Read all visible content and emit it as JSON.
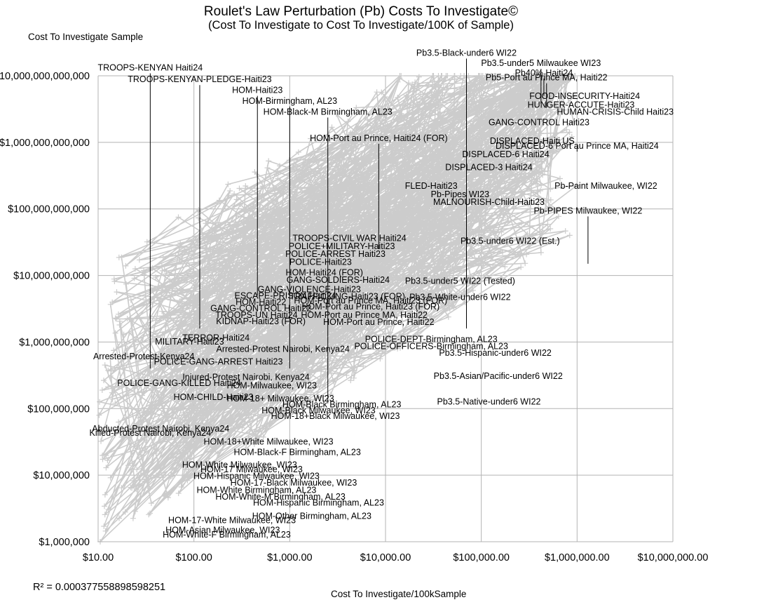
{
  "chart_data": {
    "type": "scatter",
    "title": "Roulet's Law Perturbation (Pb) Costs To Investigate©",
    "subtitle": "(Cost To Investigate to Cost To Investigate/100K of Sample)",
    "xlabel": "Cost To Investigate/100kSample",
    "ylabel": "Cost To Investigate Sample",
    "x_scale": "log",
    "y_scale": "log",
    "xlim": [
      10,
      10000000
    ],
    "ylim": [
      1000000,
      10000000000000
    ],
    "x_tick_values": [
      10,
      100,
      1000,
      10000,
      100000,
      1000000,
      10000000
    ],
    "x_tick_labels": [
      "$10.00",
      "$100.00",
      "$1,000.00",
      "$10,000.00",
      "$100,000.00",
      "$1,000,000.00",
      "$10,000,000.00"
    ],
    "y_tick_values": [
      1000000,
      10000000,
      100000000,
      1000000000,
      10000000000,
      100000000000,
      1000000000000,
      10000000000000
    ],
    "y_tick_labels": [
      "$1,000,000",
      "$10,000,000",
      "$100,000,000",
      "$1,000,000,000",
      "$10,000,000,000",
      "$100,000,000,000",
      "$1,000,000,000,000",
      "$10,000,000,000,000"
    ],
    "grid": true,
    "series_color": "#cccccc",
    "r_squared": "R² = 0.000377558898598251",
    "annotations": [
      {
        "text": "TROOPS-KENYAN Haiti24",
        "x": 35,
        "y": 12000000000000.0,
        "line_to_y": 400000000
      },
      {
        "text": "TROOPS-KENYAN-PLEDGE-Haiti23",
        "x": 115,
        "y": 8000000000000.0,
        "line_to_y": 1600000000
      },
      {
        "text": "HOM-Haiti23",
        "x": 460,
        "y": 5500000000000.0,
        "line_to_y": 5000000000
      },
      {
        "text": "HOM-Birmingham, AL23",
        "x": 1000,
        "y": 3800000000000.0,
        "line_to_y": 400000000
      },
      {
        "text": "HOM-Black-M Birmingham, AL23",
        "x": 2500,
        "y": 2600000000000.0,
        "line_to_y": 120000000
      },
      {
        "text": "HOM-Port au Prince, Haiti24 (FOR)",
        "x": 8500,
        "y": 1050000000000.0,
        "line_to_y": 25000000000
      },
      {
        "text": "Pb3.5-Black-under6 WI22",
        "x": 70000,
        "y": 20000000000000.0,
        "line_to_y": 1600000000
      },
      {
        "text": "Pb3.5-under5 Milwaukee WI23",
        "x": 420000,
        "y": 14000000000000.0,
        "line_to_y": 3800000000000.0
      },
      {
        "text": "Pb40% Haiti24",
        "x": 450000,
        "y": 10000000000000.0,
        "line_to_y": 5000000000000.0
      },
      {
        "text": "Pb5-Port au Prince MA, Haiti22",
        "x": 480000,
        "y": 8500000000000.0,
        "line_to_y": 3300000000000.0
      },
      {
        "text": "FOOD-INSECURITY-Haiti24",
        "x": 1200000,
        "y": 4500000000000.0
      },
      {
        "text": "HUNGER-ACCUTE-Haiti23",
        "x": 1100000,
        "y": 3300000000000.0
      },
      {
        "text": "HUMAN-CRISIS-Child Haiti23",
        "x": 2500000,
        "y": 2600000000000.0
      },
      {
        "text": "GANG-CONTROL Haiti23",
        "x": 400000,
        "y": 1800000000000.0
      },
      {
        "text": "DISPLACED-Haiti US",
        "x": 340000,
        "y": 950000000000.0
      },
      {
        "text": "DISPLACED-6 Port au Prince MA, Haiti24",
        "x": 1000000,
        "y": 800000000000.0,
        "line_to_y": 900000000000.0
      },
      {
        "text": "DISPLACED-6 Haiti24",
        "x": 180000,
        "y": 600000000000.0
      },
      {
        "text": "DISPLACED-3 Haiti24",
        "x": 120000,
        "y": 380000000000.0
      },
      {
        "text": "FLED-Haiti23",
        "x": 30000,
        "y": 200000000000.0
      },
      {
        "text": "Pb-Paint Milwaukee, WI22",
        "x": 2000000,
        "y": 200000000000.0
      },
      {
        "text": "Pb-Pipes WI23",
        "x": 60000,
        "y": 150000000000.0
      },
      {
        "text": "MALNOURISH-Child-Haiti23",
        "x": 120000,
        "y": 115000000000.0
      },
      {
        "text": "Pb-PIPES Milwaukee, WI22",
        "x": 1300000,
        "y": 85000000000.0,
        "line_to_y": 15000000000.0
      },
      {
        "text": "TROOPS-CIVIL WAR Haiti24",
        "x": 4200,
        "y": 33000000000.0
      },
      {
        "text": "POLICE+MILITARY-Haiti23",
        "x": 3500,
        "y": 25000000000.0
      },
      {
        "text": "POLICE-ARREST Haiti23",
        "x": 3000,
        "y": 19000000000.0
      },
      {
        "text": "POLICE-Haiti23",
        "x": 2100,
        "y": 14500000000.0
      },
      {
        "text": "HOM-Haiti24 (FOR)",
        "x": 2300,
        "y": 10000000000.0
      },
      {
        "text": "GANG-SOLDIERS-Haiti24",
        "x": 3200,
        "y": 7800000000.0
      },
      {
        "text": "Pb3.5-under6 WI22 (Est.)",
        "x": 200000,
        "y": 30000000000.0
      },
      {
        "text": "Pb3.5-under5 WI22 (Tested)",
        "x": 60000,
        "y": 7500000000.0
      },
      {
        "text": "GANG-VIOLENCE-Haiti23",
        "x": 1600,
        "y": 5600000000.0
      },
      {
        "text": "ESCAPE-PRISON Haiti24",
        "x": 900,
        "y": 4500000000.0
      },
      {
        "text": "TRAFFICKING-Haiti23 (FOR)",
        "x": 4000,
        "y": 4400000000.0
      },
      {
        "text": "Pb3.5-White-under6 WI22",
        "x": 60000,
        "y": 4300000000.0
      },
      {
        "text": "HOM-Port au Prince MA, Haiti23 (FOR)",
        "x": 7000,
        "y": 3800000000.0
      },
      {
        "text": "HOM-Haiti22",
        "x": 500,
        "y": 3600000000.0
      },
      {
        "text": "HOM-Port au Prince, Haiti23 (FOR)",
        "x": 7000,
        "y": 3100000000.0
      },
      {
        "text": "GANG-CONTROL Haiti22",
        "x": 500,
        "y": 2900000000.0
      },
      {
        "text": "HOM-Port au Prince MA, Haiti22",
        "x": 6000,
        "y": 2300000000.0
      },
      {
        "text": "TROOPS-UN Haiti24",
        "x": 450,
        "y": 2300000000.0
      },
      {
        "text": "KIDNAP-Haiti23 (FOR)",
        "x": 500,
        "y": 1850000000.0
      },
      {
        "text": "HOM-Port au Prince, Haiti22",
        "x": 8500,
        "y": 1800000000.0
      },
      {
        "text": "TERROR-Haiti24",
        "x": 170,
        "y": 1050000000.0
      },
      {
        "text": "MILITARY-Haiti23",
        "x": 90,
        "y": 920000000.0
      },
      {
        "text": "POLICE-DEPT-Birmingham, AL23",
        "x": 30000,
        "y": 1000000000.0
      },
      {
        "text": "POLICE-OFFICERS-Birmingham, AL23",
        "x": 30000,
        "y": 780000000.0
      },
      {
        "text": "Arrested-Protest Nairobi, Kenya24",
        "x": 850,
        "y": 710000000.0
      },
      {
        "text": "Pb3.5-Hispanic-under6 WI22",
        "x": 140000,
        "y": 620000000.0
      },
      {
        "text": "Arrested-Protest-Kenya24",
        "x": 30,
        "y": 550000000.0
      },
      {
        "text": "POLICE-GANG-ARREST Haiti23",
        "x": 180,
        "y": 460000000.0
      },
      {
        "text": "Pb3.5-Asian/Pacific-under6 WI22",
        "x": 150000,
        "y": 280000000.0
      },
      {
        "text": "Injured-Protest Nairobi, Kenya24",
        "x": 350,
        "y": 270000000.0
      },
      {
        "text": "POLICE-GANG-KILLED Haiti24",
        "x": 70,
        "y": 220000000.0
      },
      {
        "text": "HOM-Milwaukee, WI23",
        "x": 650,
        "y": 200000000.0
      },
      {
        "text": "HOM-CHILD-Haiti23",
        "x": 160,
        "y": 135000000.0
      },
      {
        "text": "HOM-18+ Milwaukee, WI23",
        "x": 800,
        "y": 128000000.0
      },
      {
        "text": "HOM-Black Birmingham, AL23",
        "x": 3500,
        "y": 105000000.0
      },
      {
        "text": "Pb3.5-Native-under6 WI22",
        "x": 120000,
        "y": 115000000.0
      },
      {
        "text": "HOM-Black Milwaukee, WI23",
        "x": 2000,
        "y": 85000000.0
      },
      {
        "text": "HOM-18+Black Milwaukee, WI23",
        "x": 3000,
        "y": 70000000.0
      },
      {
        "text": "Abducted-Protest Nairobi, Kenya24",
        "x": 45,
        "y": 45000000.0
      },
      {
        "text": "Killed-Protest Nairobi, Kenya24",
        "x": 35,
        "y": 39000000.0
      },
      {
        "text": "HOM-18+White Milwaukee, WI23",
        "x": 600,
        "y": 29000000.0
      },
      {
        "text": "HOM-Black-F Birmingham, AL23",
        "x": 1200,
        "y": 20000000.0
      },
      {
        "text": "HOM-White Milwaukee, WI23",
        "x": 300,
        "y": 13000000.0
      },
      {
        "text": "HOM-17 Milwaukee, WI23",
        "x": 400,
        "y": 11000000.0
      },
      {
        "text": "HOM-Hispanic Milwaukee, WI23",
        "x": 450,
        "y": 8800000.0
      },
      {
        "text": "HOM-17-Black Milwaukee, WI23",
        "x": 1100,
        "y": 7000000.0
      },
      {
        "text": "HOM-White Birmingham, AL23",
        "x": 450,
        "y": 5400000.0
      },
      {
        "text": "HOM-White-M Birmingham, AL23",
        "x": 800,
        "y": 4300000.0
      },
      {
        "text": "HOM-Hispanic Birmingham, AL23",
        "x": 2000,
        "y": 3500000.0
      },
      {
        "text": "HOM-Other Birmingham, AL23",
        "x": 1700,
        "y": 2200000.0
      },
      {
        "text": "HOM-17-White Milwaukee, WI23",
        "x": 250,
        "y": 1900000.0
      },
      {
        "text": "HOM-Asian Milwaukee, WI23",
        "x": 200,
        "y": 1350000.0
      },
      {
        "text": "HOM-White-F Birmingham, AL23",
        "x": 220,
        "y": 1150000.0
      }
    ]
  }
}
